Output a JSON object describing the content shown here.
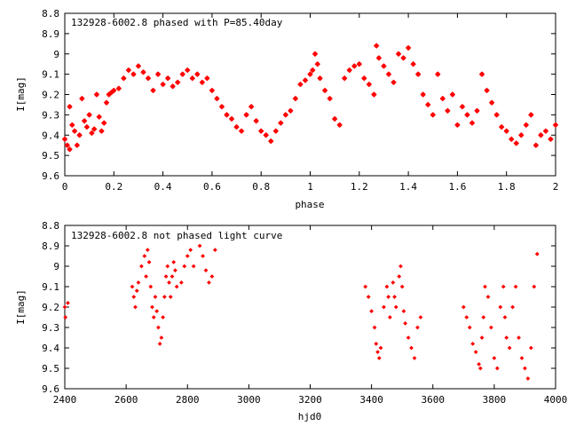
{
  "chart_data": [
    {
      "type": "scatter",
      "title": "132928-6002.8 phased with P=85.40day",
      "xlabel": "phase",
      "ylabel": "I[mag]",
      "xlim": [
        0,
        2
      ],
      "ylim": [
        9.6,
        8.8
      ],
      "y_inverted": true,
      "x_ticks": [
        "0",
        "0.2",
        "0.4",
        "0.6",
        "0.8",
        "1",
        "1.2",
        "1.4",
        "1.6",
        "1.8",
        "2"
      ],
      "y_ticks": [
        "8.8",
        "8.9",
        "9",
        "9.1",
        "9.2",
        "9.3",
        "9.4",
        "9.5",
        "9.6"
      ],
      "marker": "star",
      "color": "#ff0000",
      "series": [
        {
          "x": [
            0.0,
            0.01,
            0.02,
            0.02,
            0.03,
            0.04,
            0.05,
            0.06,
            0.07,
            0.08,
            0.09,
            0.1,
            0.11,
            0.12,
            0.13,
            0.14,
            0.15,
            0.16,
            0.17,
            0.18,
            0.19,
            0.2,
            0.22,
            0.24,
            0.26,
            0.28,
            0.3,
            0.32,
            0.34,
            0.36,
            0.38,
            0.4,
            0.42,
            0.44,
            0.46,
            0.48,
            0.5,
            0.52,
            0.54,
            0.56,
            0.58,
            0.6,
            0.62,
            0.64,
            0.66,
            0.68,
            0.7,
            0.72,
            0.74,
            0.76,
            0.78,
            0.8,
            0.82,
            0.84,
            0.86,
            0.88,
            0.9,
            0.92,
            0.94,
            0.96,
            0.98,
            1.0,
            1.01,
            1.02,
            1.03,
            1.04,
            1.06,
            1.08,
            1.1,
            1.12,
            1.14,
            1.16,
            1.18,
            1.2,
            1.22,
            1.24,
            1.26,
            1.27,
            1.28,
            1.3,
            1.32,
            1.34,
            1.36,
            1.38,
            1.4,
            1.42,
            1.44,
            1.46,
            1.48,
            1.5,
            1.52,
            1.54,
            1.56,
            1.58,
            1.6,
            1.62,
            1.64,
            1.66,
            1.68,
            1.7,
            1.72,
            1.74,
            1.76,
            1.78,
            1.8,
            1.82,
            1.84,
            1.86,
            1.88,
            1.9,
            1.92,
            1.94,
            1.96,
            1.98,
            2.0
          ],
          "y": [
            9.42,
            9.45,
            9.47,
            9.26,
            9.35,
            9.38,
            9.45,
            9.4,
            9.22,
            9.33,
            9.36,
            9.3,
            9.39,
            9.37,
            9.2,
            9.31,
            9.38,
            9.34,
            9.24,
            9.2,
            9.19,
            9.18,
            9.17,
            9.12,
            9.08,
            9.1,
            9.06,
            9.09,
            9.12,
            9.18,
            9.1,
            9.15,
            9.12,
            9.16,
            9.14,
            9.1,
            9.08,
            9.12,
            9.1,
            9.14,
            9.12,
            9.18,
            9.22,
            9.26,
            9.3,
            9.32,
            9.36,
            9.38,
            9.3,
            9.26,
            9.33,
            9.38,
            9.4,
            9.43,
            9.38,
            9.34,
            9.3,
            9.28,
            9.22,
            9.15,
            9.13,
            9.1,
            9.08,
            9.0,
            9.05,
            9.12,
            9.18,
            9.22,
            9.32,
            9.35,
            9.12,
            9.08,
            9.06,
            9.05,
            9.12,
            9.15,
            9.2,
            8.96,
            9.02,
            9.06,
            9.1,
            9.14,
            9.0,
            9.02,
            8.97,
            9.05,
            9.1,
            9.2,
            9.25,
            9.3,
            9.1,
            9.22,
            9.28,
            9.2,
            9.35,
            9.26,
            9.3,
            9.34,
            9.28,
            9.1,
            9.18,
            9.24,
            9.3,
            9.36,
            9.38,
            9.42,
            9.44,
            9.4,
            9.35,
            9.3,
            9.45,
            9.4,
            9.38,
            9.42,
            9.35
          ]
        }
      ]
    },
    {
      "type": "scatter",
      "title": "132928-6002.8 not phased light curve",
      "xlabel": "hjd0",
      "ylabel": "I[mag]",
      "xlim": [
        2400,
        4000
      ],
      "ylim": [
        9.6,
        8.8
      ],
      "y_inverted": true,
      "x_ticks": [
        "2400",
        "2600",
        "2800",
        "3000",
        "3200",
        "3400",
        "3600",
        "3800",
        "4000"
      ],
      "y_ticks": [
        "8.8",
        "8.9",
        "9",
        "9.1",
        "9.2",
        "9.3",
        "9.4",
        "9.5",
        "9.6"
      ],
      "marker": "diamond",
      "color": "#ff0000",
      "series": [
        {
          "x": [
            2400,
            2402,
            2410,
            2620,
            2625,
            2630,
            2635,
            2640,
            2650,
            2660,
            2665,
            2670,
            2675,
            2680,
            2685,
            2690,
            2695,
            2700,
            2705,
            2710,
            2715,
            2720,
            2725,
            2730,
            2735,
            2740,
            2745,
            2750,
            2755,
            2760,
            2765,
            2780,
            2790,
            2800,
            2810,
            2820,
            2840,
            2850,
            2860,
            2870,
            2880,
            2890,
            3380,
            3390,
            3400,
            3410,
            3415,
            3420,
            3425,
            3430,
            3440,
            3450,
            3455,
            3460,
            3470,
            3475,
            3480,
            3490,
            3495,
            3500,
            3505,
            3510,
            3520,
            3530,
            3540,
            3550,
            3560,
            3700,
            3710,
            3720,
            3730,
            3740,
            3750,
            3755,
            3760,
            3765,
            3770,
            3780,
            3790,
            3800,
            3810,
            3820,
            3830,
            3835,
            3840,
            3850,
            3860,
            3870,
            3880,
            3890,
            3900,
            3910,
            3920,
            3930,
            3940
          ],
          "y": [
            9.2,
            9.25,
            9.18,
            9.1,
            9.15,
            9.2,
            9.12,
            9.08,
            9.0,
            8.95,
            9.05,
            8.92,
            8.98,
            9.1,
            9.2,
            9.25,
            9.15,
            9.22,
            9.3,
            9.38,
            9.35,
            9.25,
            9.15,
            9.05,
            9.0,
            9.08,
            9.15,
            9.05,
            8.98,
            9.02,
            9.1,
            9.08,
            9.0,
            8.95,
            8.92,
            9.0,
            8.9,
            8.95,
            9.02,
            9.08,
            9.05,
            8.92,
            9.1,
            9.15,
            9.22,
            9.3,
            9.38,
            9.42,
            9.45,
            9.4,
            9.2,
            9.1,
            9.15,
            9.25,
            9.08,
            9.15,
            9.2,
            9.05,
            9.0,
            9.1,
            9.22,
            9.28,
            9.35,
            9.4,
            9.45,
            9.3,
            9.25,
            9.2,
            9.25,
            9.3,
            9.38,
            9.42,
            9.48,
            9.5,
            9.35,
            9.25,
            9.1,
            9.15,
            9.3,
            9.45,
            9.5,
            9.2,
            9.1,
            9.25,
            9.35,
            9.4,
            9.2,
            9.1,
            9.35,
            9.45,
            9.5,
            9.55,
            9.4,
            9.1,
            8.94
          ]
        }
      ]
    }
  ]
}
